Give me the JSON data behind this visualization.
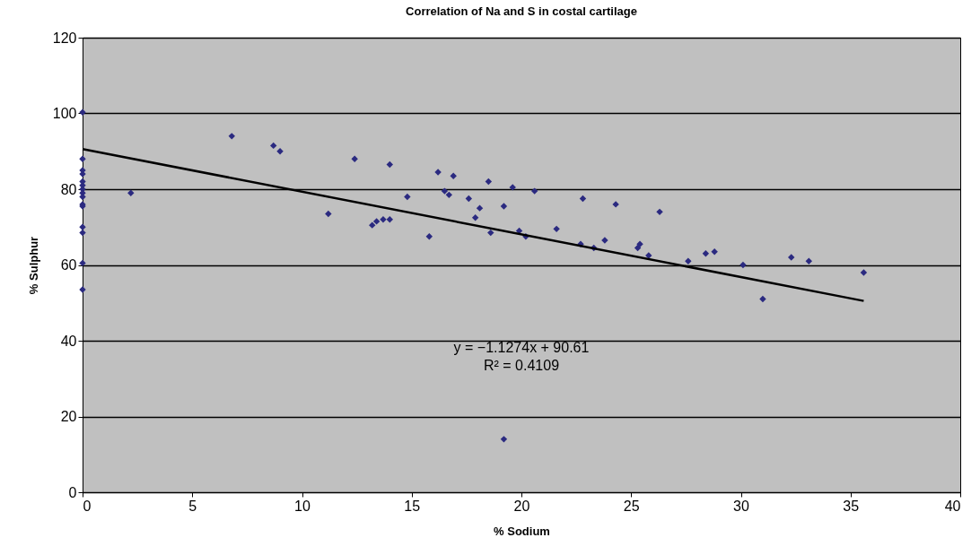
{
  "chart_data": {
    "type": "scatter",
    "title": "Correlation of Na and S in costal cartilage",
    "xlabel": "% Sodium",
    "ylabel": "% Sulphur",
    "xlim": [
      0,
      40
    ],
    "xticks": [
      0,
      5,
      10,
      15,
      20,
      25,
      30,
      35,
      40
    ],
    "ylim": [
      0,
      120
    ],
    "yticks": [
      0,
      20,
      40,
      60,
      80,
      100,
      120
    ],
    "grid": "y",
    "annotations": [
      "y = −1.1274x + 90.61",
      "R² = 0.4109"
    ],
    "series": [
      {
        "marker": "diamond",
        "color": "#2b2a80",
        "x": [
          0,
          0,
          0,
          0,
          0,
          0,
          0,
          0,
          0,
          0,
          0,
          0,
          0,
          0,
          0,
          2.2,
          6.8,
          8.7,
          9,
          11.2,
          12.4,
          13.2,
          13.4,
          13.7,
          14,
          14,
          14.8,
          15.8,
          16.2,
          16.5,
          16.7,
          16.9,
          17.6,
          17.9,
          18.1,
          18.5,
          18.6,
          19.2,
          19.6,
          19.9,
          20.2,
          20.6,
          21.6,
          22.7,
          22.8,
          23.3,
          23.8,
          24.3,
          25.3,
          25.4,
          25.8,
          26.3,
          27.6,
          28.4,
          28.8,
          30.1,
          31,
          32.3,
          33.1,
          35.6,
          19.2
        ],
        "values": [
          100.3,
          88,
          85,
          84,
          82,
          81,
          80,
          79,
          78,
          76,
          75.5,
          70,
          68.5,
          60.5,
          53.5,
          79,
          94,
          91.5,
          90,
          73.5,
          88,
          70.5,
          71.5,
          72,
          86.5,
          72,
          78,
          67.5,
          84.5,
          79.5,
          78.5,
          83.5,
          77.5,
          72.5,
          75,
          82,
          68.5,
          75.5,
          80.5,
          69,
          67.5,
          79.5,
          69.5,
          65.5,
          77.5,
          64.5,
          66.5,
          76,
          64.5,
          65.5,
          62.5,
          74,
          61,
          63,
          63.5,
          60,
          51,
          62,
          61,
          58,
          14
        ]
      },
      {
        "type": "line",
        "color": "#000000",
        "line_style": "solid",
        "marker": "none",
        "x": [
          0,
          35.6
        ],
        "values": [
          90.6,
          50.5
        ]
      }
    ]
  }
}
